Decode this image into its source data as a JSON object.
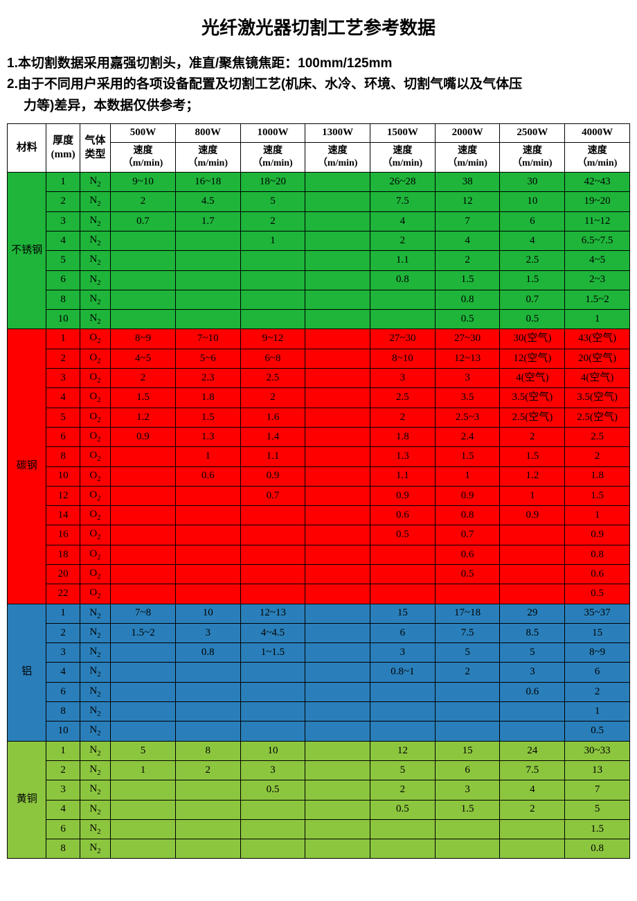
{
  "title": "光纤激光器切割工艺参考数据",
  "note1": "1.本切割数据采用嘉强切割头，准直/聚焦镜焦距：100mm/125mm",
  "note2a": "2.由于不同用户采用的各项设备配置及切割工艺(机床、水冷、环境、切割气嘴以及气体压",
  "note2b": "力等)差异，本数据仅供参考；",
  "headers": {
    "material": "材料",
    "thickness": "厚度\n(mm)",
    "gas": "气体\n类型",
    "speed_unit": "速度\n（m/min)",
    "powers": [
      "500W",
      "800W",
      "1000W",
      "1300W",
      "1500W",
      "2000W",
      "2500W",
      "4000W"
    ]
  },
  "colors": {
    "stainless": "#1eb53a",
    "carbon": "#ff0000",
    "aluminum": "#2a7fba",
    "brass": "#8cc63f",
    "border": "#000000",
    "bg": "#ffffff"
  },
  "groups": [
    {
      "name": "不锈钢",
      "color": "#1eb53a",
      "gas": "N",
      "rows": [
        {
          "t": "1",
          "v": [
            "9~10",
            "16~18",
            "18~20",
            "",
            "26~28",
            "38",
            "30",
            "42~43"
          ]
        },
        {
          "t": "2",
          "v": [
            "2",
            "4.5",
            "5",
            "",
            "7.5",
            "12",
            "10",
            "19~20"
          ]
        },
        {
          "t": "3",
          "v": [
            "0.7",
            "1.7",
            "2",
            "",
            "4",
            "7",
            "6",
            "11~12"
          ]
        },
        {
          "t": "4",
          "v": [
            "",
            "",
            "1",
            "",
            "2",
            "4",
            "4",
            "6.5~7.5"
          ]
        },
        {
          "t": "5",
          "v": [
            "",
            "",
            "",
            "",
            "1.1",
            "2",
            "2.5",
            "4~5"
          ]
        },
        {
          "t": "6",
          "v": [
            "",
            "",
            "",
            "",
            "0.8",
            "1.5",
            "1.5",
            "2~3"
          ]
        },
        {
          "t": "8",
          "v": [
            "",
            "",
            "",
            "",
            "",
            "0.8",
            "0.7",
            "1.5~2"
          ]
        },
        {
          "t": "10",
          "v": [
            "",
            "",
            "",
            "",
            "",
            "0.5",
            "0.5",
            "1"
          ]
        }
      ]
    },
    {
      "name": "碳钢",
      "color": "#ff0000",
      "gas": "O",
      "rows": [
        {
          "t": "1",
          "v": [
            "8~9",
            "7~10",
            "9~12",
            "",
            "27~30",
            "27~30",
            "30(空气)",
            "43(空气)"
          ]
        },
        {
          "t": "2",
          "v": [
            "4~5",
            "5~6",
            "6~8",
            "",
            "8~10",
            "12~13",
            "12(空气)",
            "20(空气)"
          ]
        },
        {
          "t": "3",
          "v": [
            "2",
            "2.3",
            "2.5",
            "",
            "3",
            "3",
            "4(空气)",
            "4(空气)"
          ]
        },
        {
          "t": "4",
          "v": [
            "1.5",
            "1.8",
            "2",
            "",
            "2.5",
            "3.5",
            "3.5(空气)",
            "3.5(空气)"
          ]
        },
        {
          "t": "5",
          "v": [
            "1.2",
            "1.5",
            "1.6",
            "",
            "2",
            "2.5~3",
            "2.5(空气)",
            "2.5(空气)"
          ]
        },
        {
          "t": "6",
          "v": [
            "0.9",
            "1.3",
            "1.4",
            "",
            "1.8",
            "2.4",
            "2",
            "2.5"
          ]
        },
        {
          "t": "8",
          "v": [
            "",
            "1",
            "1.1",
            "",
            "1.3",
            "1.5",
            "1.5",
            "2"
          ]
        },
        {
          "t": "10",
          "v": [
            "",
            "0.6",
            "0.9",
            "",
            "1.1",
            "1",
            "1.2",
            "1.8"
          ]
        },
        {
          "t": "12",
          "v": [
            "",
            "",
            "0.7",
            "",
            "0.9",
            "0.9",
            "1",
            "1.5"
          ]
        },
        {
          "t": "14",
          "v": [
            "",
            "",
            "",
            "",
            "0.6",
            "0.8",
            "0.9",
            "1"
          ]
        },
        {
          "t": "16",
          "v": [
            "",
            "",
            "",
            "",
            "0.5",
            "0.7",
            "",
            "0.9"
          ]
        },
        {
          "t": "18",
          "v": [
            "",
            "",
            "",
            "",
            "",
            "0.6",
            "",
            "0.8"
          ]
        },
        {
          "t": "20",
          "v": [
            "",
            "",
            "",
            "",
            "",
            "0.5",
            "",
            "0.6"
          ]
        },
        {
          "t": "22",
          "v": [
            "",
            "",
            "",
            "",
            "",
            "",
            "",
            "0.5"
          ]
        }
      ]
    },
    {
      "name": "铝",
      "color": "#2a7fba",
      "gas": "N",
      "rows": [
        {
          "t": "1",
          "v": [
            "7~8",
            "10",
            "12~13",
            "",
            "15",
            "17~18",
            "29",
            "35~37"
          ]
        },
        {
          "t": "2",
          "v": [
            "1.5~2",
            "3",
            "4~4.5",
            "",
            "6",
            "7.5",
            "8.5",
            "15"
          ]
        },
        {
          "t": "3",
          "v": [
            "",
            "0.8",
            "1~1.5",
            "",
            "3",
            "5",
            "5",
            "8~9"
          ]
        },
        {
          "t": "4",
          "v": [
            "",
            "",
            "",
            "",
            "0.8~1",
            "2",
            "3",
            "6"
          ]
        },
        {
          "t": "6",
          "v": [
            "",
            "",
            "",
            "",
            "",
            "",
            "0.6",
            "2"
          ]
        },
        {
          "t": "8",
          "v": [
            "",
            "",
            "",
            "",
            "",
            "",
            "",
            "1"
          ]
        },
        {
          "t": "10",
          "v": [
            "",
            "",
            "",
            "",
            "",
            "",
            "",
            "0.5"
          ]
        }
      ]
    },
    {
      "name": "黄铜",
      "color": "#8cc63f",
      "gas": "N",
      "rows": [
        {
          "t": "1",
          "v": [
            "5",
            "8",
            "10",
            "",
            "12",
            "15",
            "24",
            "30~33"
          ]
        },
        {
          "t": "2",
          "v": [
            "1",
            "2",
            "3",
            "",
            "5",
            "6",
            "7.5",
            "13"
          ]
        },
        {
          "t": "3",
          "v": [
            "",
            "",
            "0.5",
            "",
            "2",
            "3",
            "4",
            "7"
          ]
        },
        {
          "t": "4",
          "v": [
            "",
            "",
            "",
            "",
            "0.5",
            "1.5",
            "2",
            "5"
          ]
        },
        {
          "t": "6",
          "v": [
            "",
            "",
            "",
            "",
            "",
            "",
            "",
            "1.5"
          ]
        },
        {
          "t": "8",
          "v": [
            "",
            "",
            "",
            "",
            "",
            "",
            "",
            "0.8"
          ]
        }
      ]
    }
  ]
}
